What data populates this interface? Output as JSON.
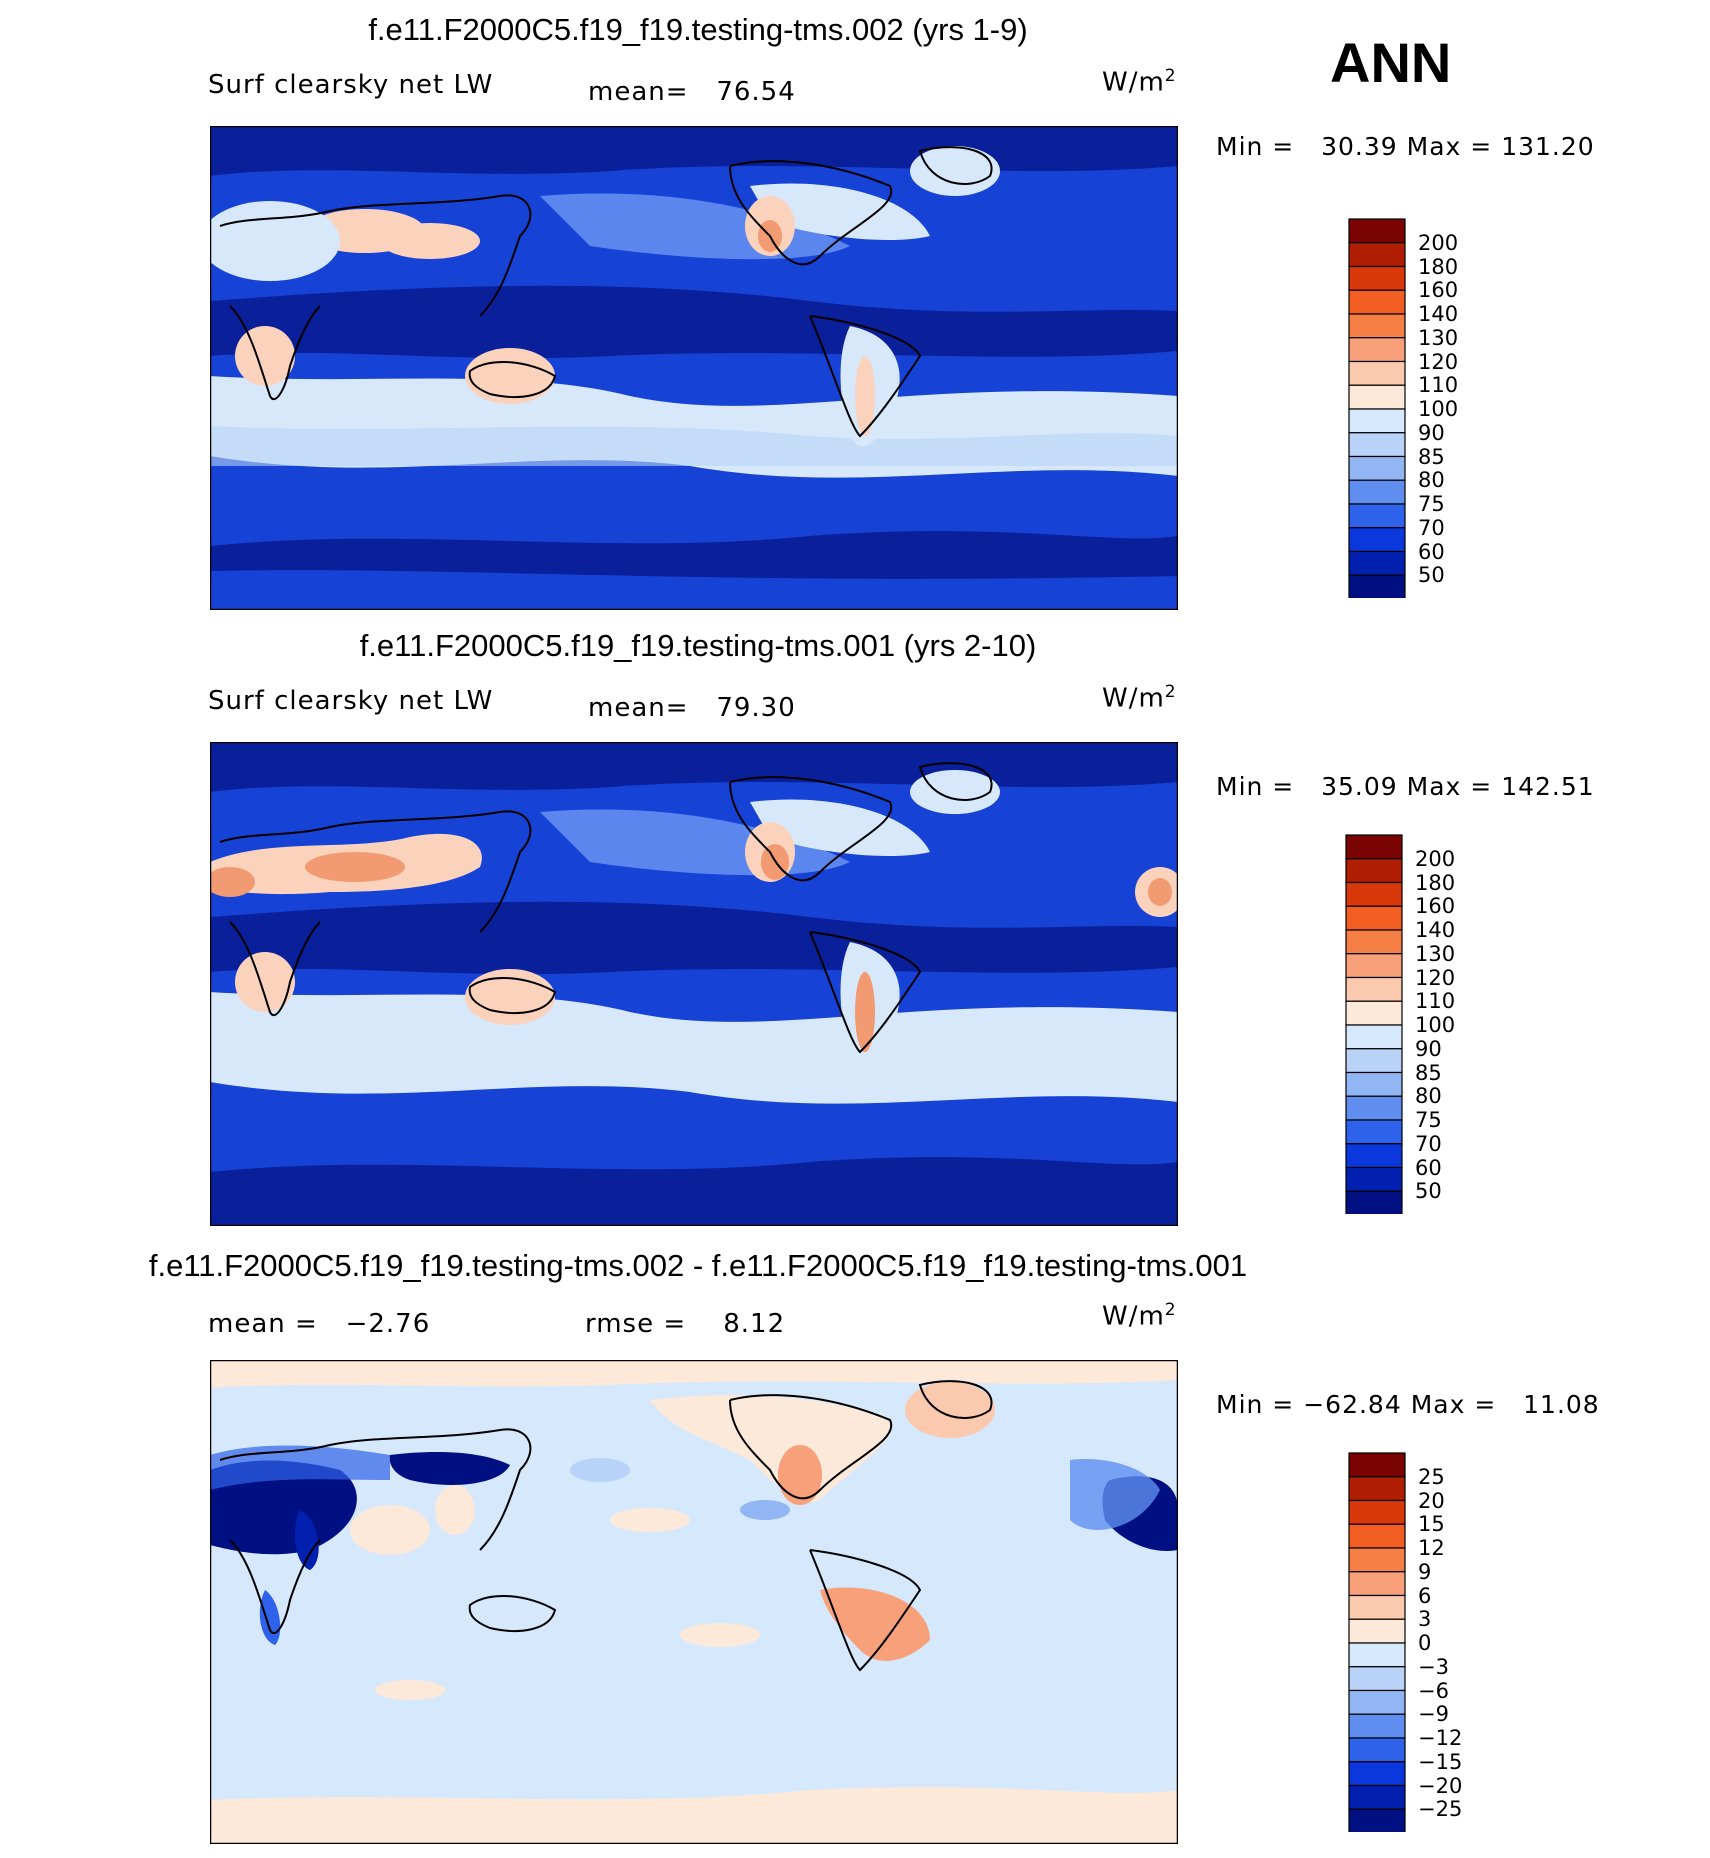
{
  "season": "ANN",
  "panels": [
    {
      "title": "f.e11.F2000C5.f19_f19.testing-tms.002 (yrs 1-9)",
      "field_label": "Surf clearsky net LW",
      "mean_label": "mean=",
      "mean_value": "76.54",
      "units": "W/m",
      "units_exp": "2",
      "min_label": "Min =",
      "min_value": "30.39",
      "max_label": "Max =",
      "max_value": "131.20",
      "levels": [
        "200",
        "180",
        "160",
        "140",
        "130",
        "120",
        "110",
        "100",
        "90",
        "85",
        "80",
        "75",
        "70",
        "60",
        "50"
      ]
    },
    {
      "title": "f.e11.F2000C5.f19_f19.testing-tms.001 (yrs 2-10)",
      "field_label": "Surf clearsky net LW",
      "mean_label": "mean=",
      "mean_value": "79.30",
      "units": "W/m",
      "units_exp": "2",
      "min_label": "Min =",
      "min_value": "35.09",
      "max_label": "Max =",
      "max_value": "142.51",
      "levels": [
        "200",
        "180",
        "160",
        "140",
        "130",
        "120",
        "110",
        "100",
        "90",
        "85",
        "80",
        "75",
        "70",
        "60",
        "50"
      ]
    },
    {
      "title": "f.e11.F2000C5.f19_f19.testing-tms.002 - f.e11.F2000C5.f19_f19.testing-tms.001",
      "mean_label": "mean =",
      "mean_value": "−2.76",
      "rmse_label": "rmse =",
      "rmse_value": "8.12",
      "units": "W/m",
      "units_exp": "2",
      "min_label": "Min =",
      "min_value": "−62.84",
      "max_label": "Max =",
      "max_value": "11.08",
      "levels": [
        "25",
        "20",
        "15",
        "12",
        "9",
        "6",
        "3",
        "0",
        "−3",
        "−6",
        "−9",
        "−12",
        "−15",
        "−20",
        "−25"
      ]
    }
  ],
  "colorbar_colors": [
    "#7a0403",
    "#b01e04",
    "#d9380b",
    "#f25d22",
    "#f57f45",
    "#f7a07a",
    "#fbc9ad",
    "#fde9da",
    "#d6e8fb",
    "#b8d3f7",
    "#92b6f4",
    "#5f8ef0",
    "#2f62ea",
    "#0a38dc",
    "#0220b0",
    "#000f82"
  ],
  "map_colors": {
    "deep": "#0a1f9a",
    "mid": "#1742d6",
    "light": "#5b86ee",
    "pale": "#d7e8fb",
    "warm": "#fbd3bd",
    "hot": "#f29b73",
    "coast": "#000000"
  }
}
